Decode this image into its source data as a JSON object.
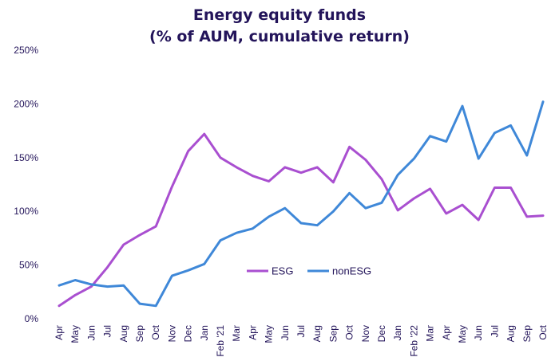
{
  "chart_data": {
    "type": "line",
    "title": "Energy equity funds",
    "subtitle": "(% of AUM, cumulative return)",
    "x": [
      "Apr",
      "May",
      "Jun",
      "Jul",
      "Aug",
      "Sep",
      "Oct",
      "Nov",
      "Dec",
      "Jan",
      "Feb '21",
      "Mar",
      "Apr",
      "May",
      "Jun",
      "Jul",
      "Aug",
      "Sep",
      "Oct",
      "Nov",
      "Dec",
      "Jan",
      "Feb '22",
      "Mar",
      "Apr",
      "May",
      "Jun",
      "Jul",
      "Aug",
      "Sep",
      "Oct"
    ],
    "ylim": [
      0,
      250
    ],
    "yticks": [
      "0%",
      "50%",
      "100%",
      "150%",
      "200%",
      "250%"
    ],
    "ytick_values": [
      0,
      50,
      100,
      150,
      200,
      250
    ],
    "grid": false,
    "legend_position": "center",
    "series": [
      {
        "name": "ESG",
        "color": "#a94fd0",
        "values": [
          12,
          22,
          30,
          48,
          69,
          78,
          86,
          123,
          156,
          172,
          150,
          141,
          133,
          128,
          141,
          136,
          141,
          127,
          160,
          148,
          130,
          101,
          112,
          121,
          98,
          106,
          92,
          122,
          122,
          95,
          96
        ]
      },
      {
        "name": "nonESG",
        "color": "#3f88d8",
        "values": [
          31,
          36,
          32,
          30,
          31,
          14,
          12,
          40,
          45,
          51,
          73,
          80,
          84,
          95,
          103,
          89,
          87,
          100,
          117,
          103,
          108,
          134,
          149,
          170,
          165,
          198,
          149,
          173,
          180,
          152,
          202
        ]
      }
    ]
  }
}
